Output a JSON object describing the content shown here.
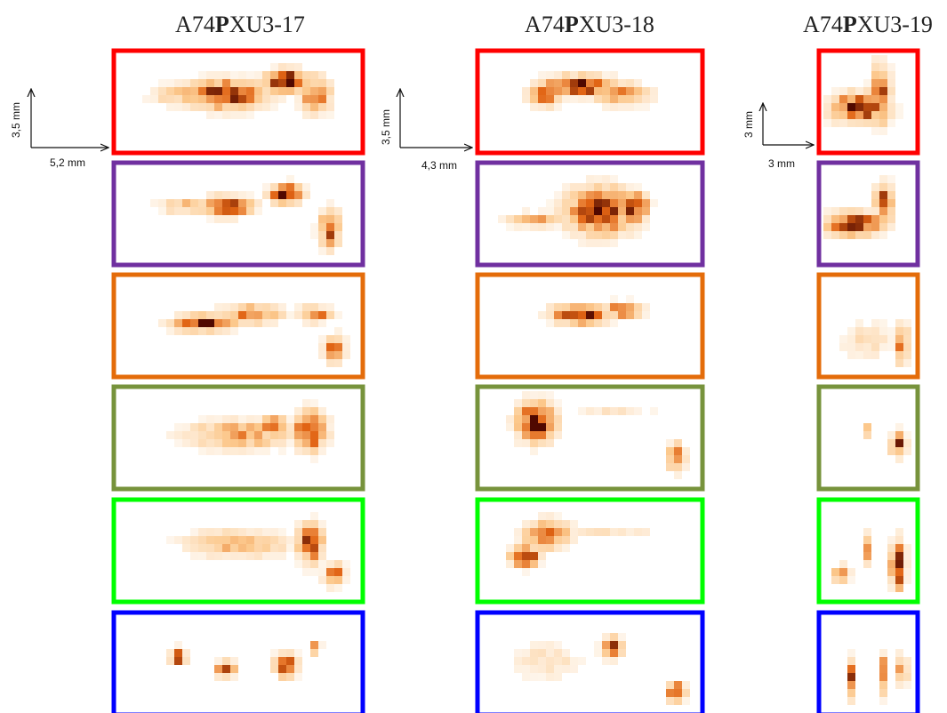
{
  "columns": [
    {
      "title": {
        "before": "A74",
        "bold": "P",
        "after": "XU3-17"
      },
      "scale": {
        "vertical": "3,5 mm",
        "horizontal": "5,2 mm"
      }
    },
    {
      "title": {
        "before": "A74",
        "bold": "P",
        "after": "XU3-18"
      },
      "scale": {
        "vertical": "3,5 mm",
        "horizontal": "4,3 mm"
      }
    },
    {
      "title": {
        "before": "A74",
        "bold": "P",
        "after": "XU3-19"
      },
      "scale": {
        "vertical": "3 mm",
        "horizontal": "3 mm"
      }
    }
  ]
}
